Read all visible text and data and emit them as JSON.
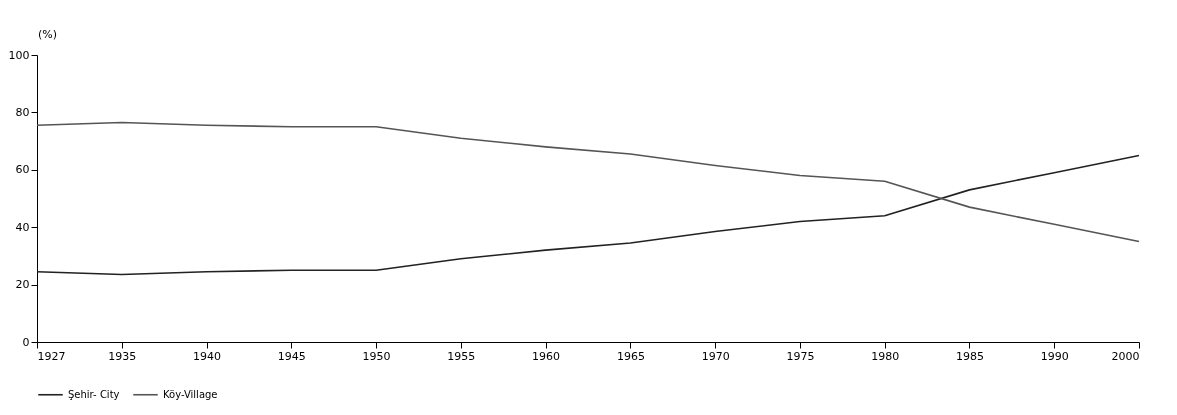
{
  "chart_data": {
    "type": "line",
    "ylabel": "(%)",
    "categories": [
      "1927",
      "1935",
      "1940",
      "1945",
      "1950",
      "1955",
      "1960",
      "1965",
      "1970",
      "1975",
      "1980",
      "1985",
      "1990",
      "2000"
    ],
    "series": [
      {
        "name": "Şehir- City",
        "color": "#222222",
        "values": [
          24.5,
          23.5,
          24.5,
          25,
          25,
          29,
          32,
          34.5,
          38.5,
          42,
          44,
          53,
          59,
          65
        ]
      },
      {
        "name": "Köy-Village",
        "color": "#555555",
        "values": [
          75.5,
          76.5,
          75.5,
          75,
          75,
          71,
          68,
          65.5,
          61.5,
          58,
          56,
          47,
          41,
          35
        ]
      }
    ],
    "ylim": [
      0,
      100
    ],
    "yticks": [
      0,
      20,
      40,
      60,
      80,
      100
    ],
    "grid": false,
    "legend": "bottom",
    "marker": "none",
    "line_style": "solid"
  }
}
